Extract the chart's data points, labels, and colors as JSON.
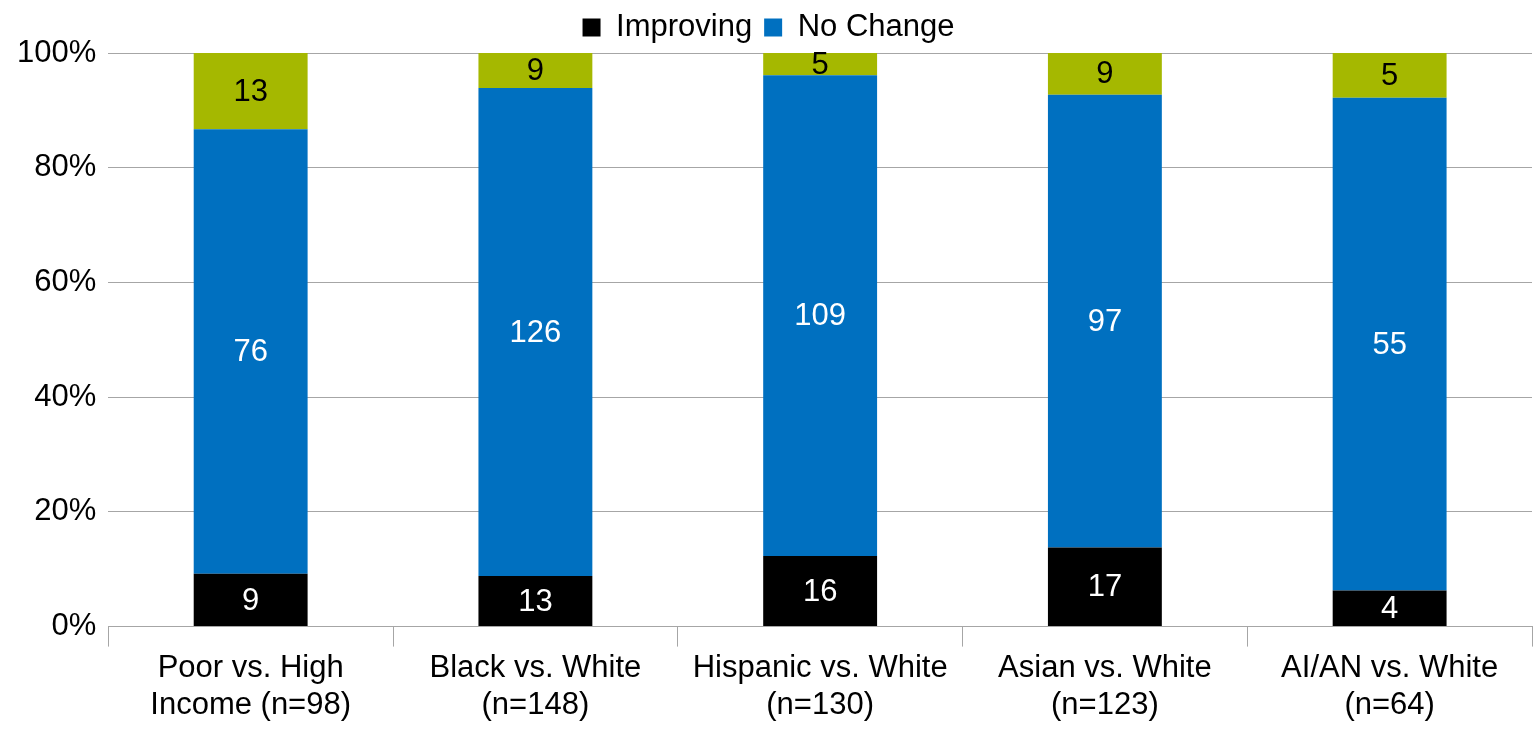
{
  "chart_data": {
    "type": "bar",
    "stacked": true,
    "categories": [
      "Poor vs. High Income (n=98)",
      "Black vs. White (n=148)",
      "Hispanic vs. White (n=130)",
      "Asian vs. White (n=123)",
      "AI/AN vs. White (n=64)"
    ],
    "series": [
      {
        "name": "Improving",
        "color": "#000000",
        "values": [
          9.2,
          8.8,
          12.3,
          13.8,
          6.3
        ]
      },
      {
        "name": "No Change",
        "color": "#0070c0",
        "values": [
          77.5,
          85.1,
          83.8,
          78.9,
          85.9
        ]
      },
      {
        "color": "#a5b800",
        "values": [
          13.3,
          6.1,
          3.9,
          7.3,
          7.8
        ]
      }
    ],
    "annotations": [
      "9",
      "76",
      "13",
      "13",
      "126",
      "9",
      "16",
      "109",
      "5",
      "17",
      "97",
      "9",
      "4",
      "55",
      "5"
    ],
    "ylim": [
      0,
      100
    ],
    "yticks": [
      {
        "value": 0,
        "label": "0%"
      },
      {
        "value": 20,
        "label": "20%"
      },
      {
        "value": 40,
        "label": "40%"
      },
      {
        "value": 60,
        "label": "60%"
      },
      {
        "value": 80,
        "label": "80%"
      },
      {
        "value": 100,
        "label": "100%"
      }
    ],
    "grid": "y",
    "legend": "top"
  }
}
